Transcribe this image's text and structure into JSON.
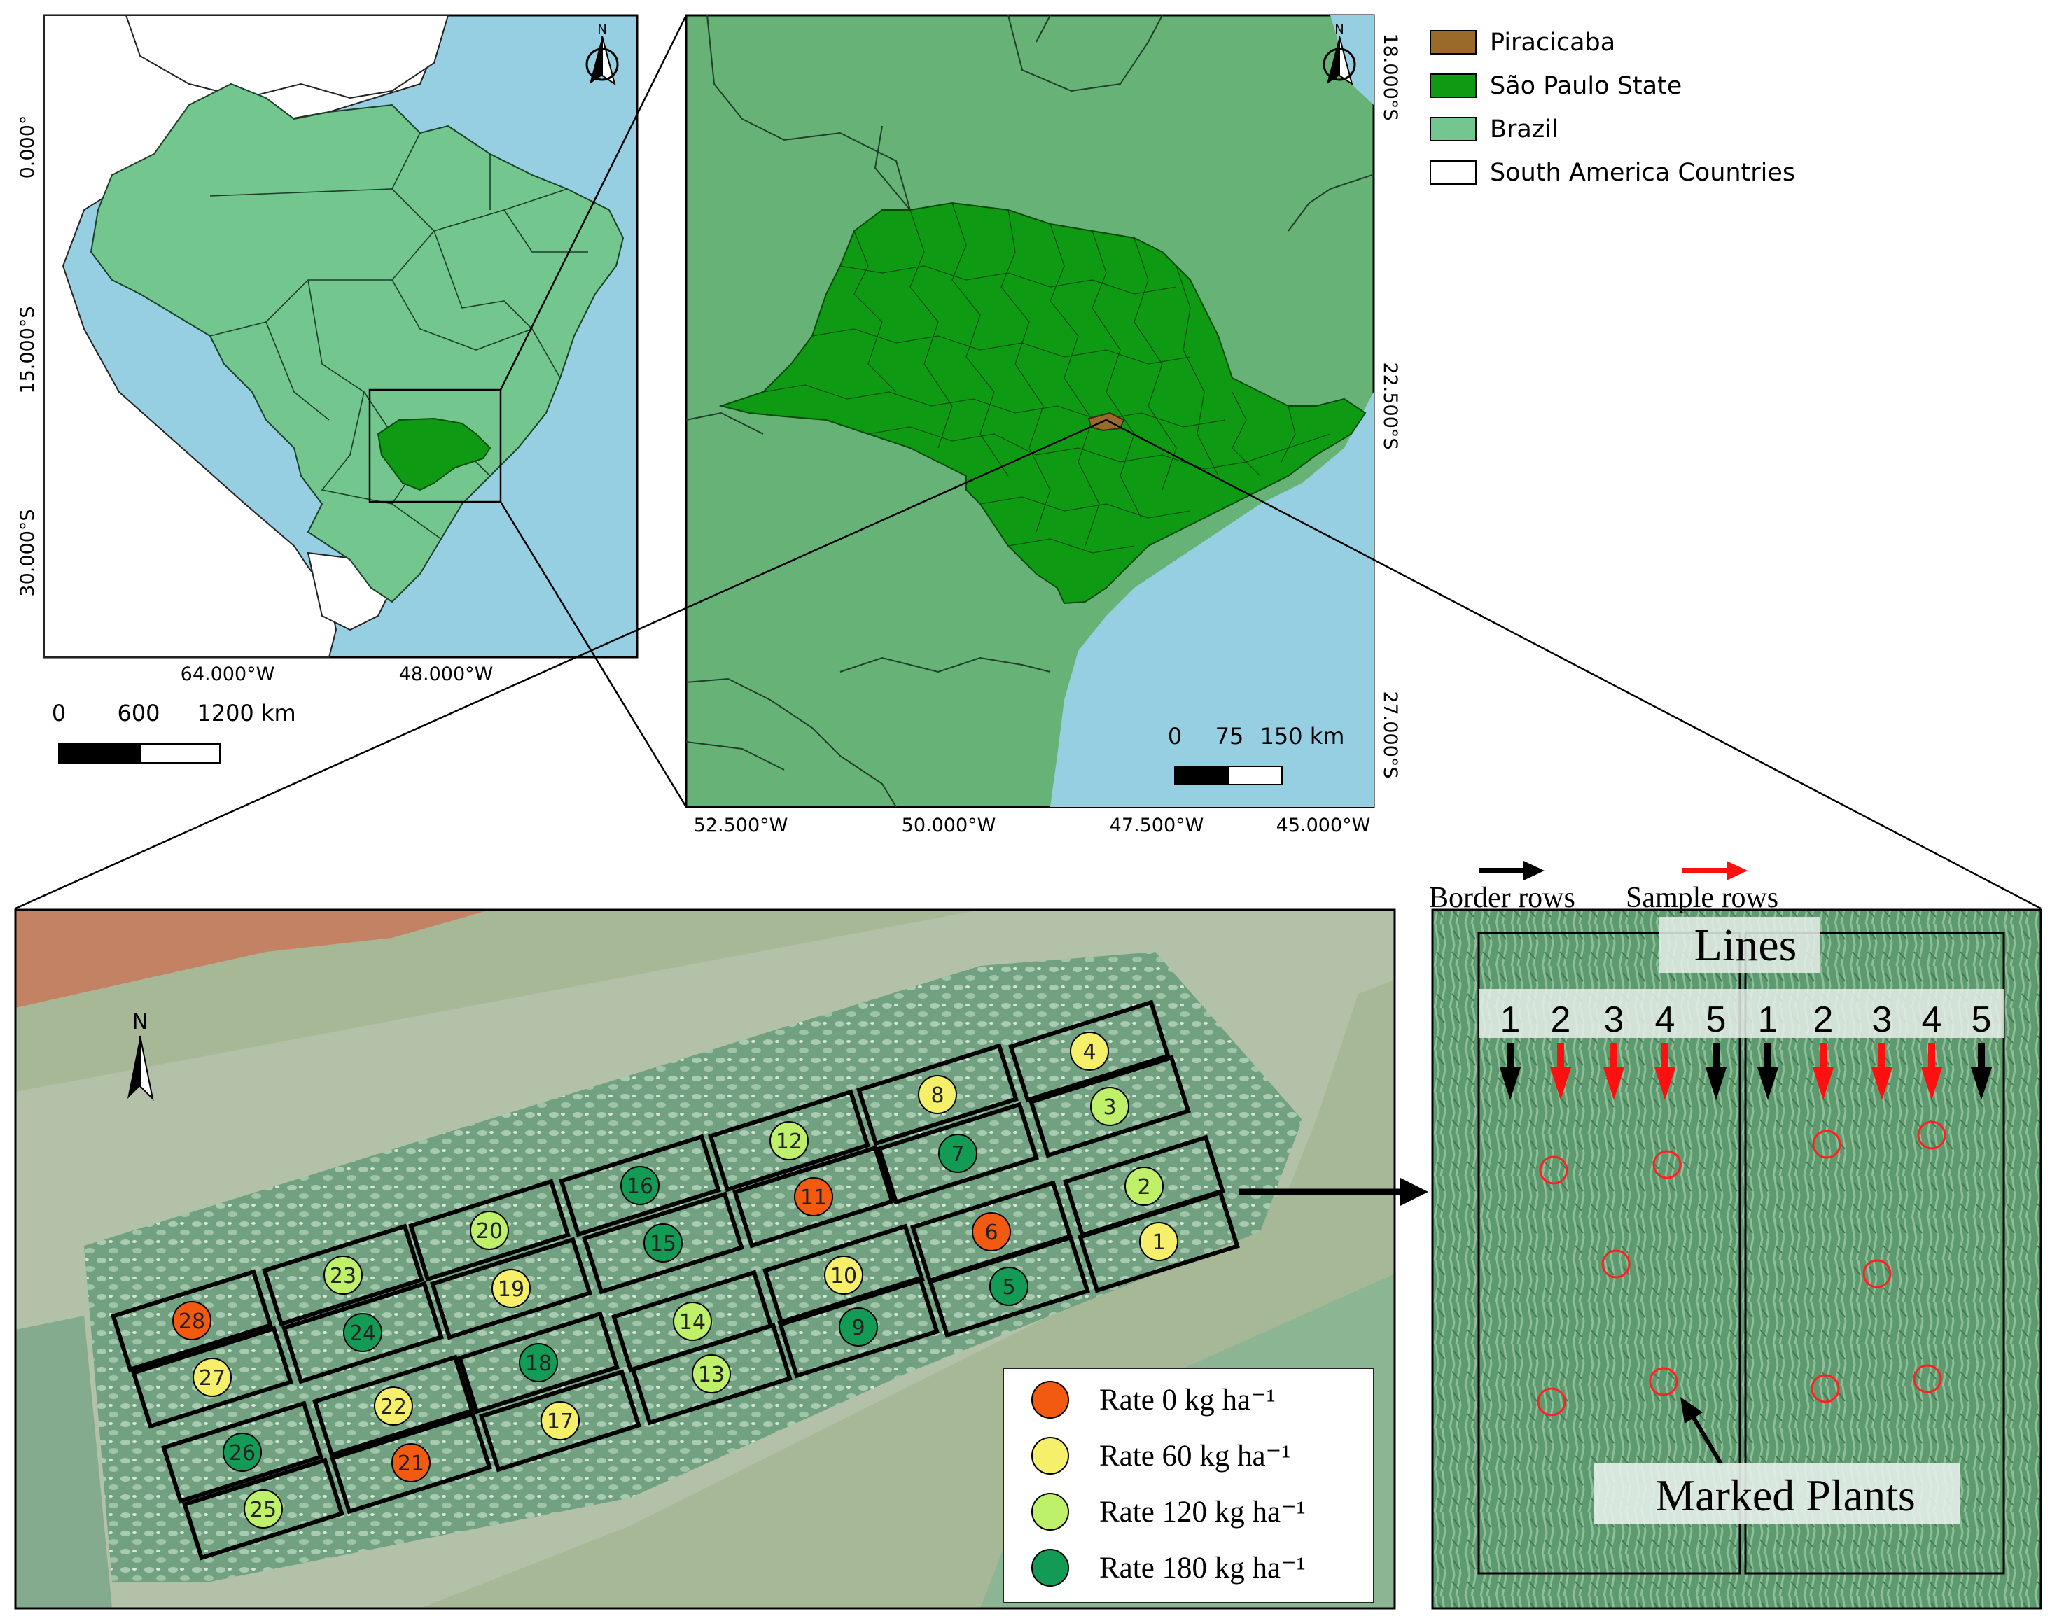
{
  "colors": {
    "ocean": "#96cfe2",
    "brazil": "#74c68f",
    "sp_state": "#0e9a12",
    "piracicaba": "#9a6a2a",
    "outside_sp": "#67b377",
    "sa_countries": "#ffffff",
    "rate0": "#f25a12",
    "rate60": "#f6ef6a",
    "rate120": "#bff069",
    "rate180": "#139a55",
    "field_green": "#7fae8e",
    "soil": "#c9785d",
    "sample_arrow": "#ff1010",
    "border_arrow": "#000000"
  },
  "legend": {
    "items": [
      {
        "label": "Piracicaba",
        "color_key": "piracicaba"
      },
      {
        "label": "São Paulo State",
        "color_key": "sp_state"
      },
      {
        "label": "Brazil",
        "color_key": "brazil"
      },
      {
        "label": "South America Countries",
        "color_key": "sa_countries"
      }
    ]
  },
  "map1": {
    "north": "N",
    "lat_labels": [
      "0.000°",
      "15.000°S",
      "30.000°S"
    ],
    "lon_labels": [
      "64.000°W",
      "48.000°W"
    ],
    "scale_labels": [
      "0",
      "600",
      "1200 km"
    ]
  },
  "map2": {
    "north": "N",
    "lat_labels": [
      "18.000°S",
      "22.500°S",
      "27.000°S"
    ],
    "lon_labels": [
      "52.500°W",
      "50.000°W",
      "47.500°W",
      "45.000°W"
    ],
    "scale_labels": [
      "0",
      "75",
      "150 km"
    ]
  },
  "field": {
    "north": "N",
    "plots": [
      {
        "id": "1",
        "rate": "rate60"
      },
      {
        "id": "2",
        "rate": "rate120"
      },
      {
        "id": "3",
        "rate": "rate120"
      },
      {
        "id": "4",
        "rate": "rate60"
      },
      {
        "id": "5",
        "rate": "rate180"
      },
      {
        "id": "6",
        "rate": "rate0"
      },
      {
        "id": "7",
        "rate": "rate180"
      },
      {
        "id": "8",
        "rate": "rate60"
      },
      {
        "id": "9",
        "rate": "rate180"
      },
      {
        "id": "10",
        "rate": "rate60"
      },
      {
        "id": "11",
        "rate": "rate0"
      },
      {
        "id": "12",
        "rate": "rate120"
      },
      {
        "id": "13",
        "rate": "rate120"
      },
      {
        "id": "14",
        "rate": "rate120"
      },
      {
        "id": "15",
        "rate": "rate180"
      },
      {
        "id": "16",
        "rate": "rate180"
      },
      {
        "id": "17",
        "rate": "rate60"
      },
      {
        "id": "18",
        "rate": "rate180"
      },
      {
        "id": "19",
        "rate": "rate60"
      },
      {
        "id": "20",
        "rate": "rate120"
      },
      {
        "id": "21",
        "rate": "rate0"
      },
      {
        "id": "22",
        "rate": "rate60"
      },
      {
        "id": "23",
        "rate": "rate120"
      },
      {
        "id": "24",
        "rate": "rate180"
      },
      {
        "id": "25",
        "rate": "rate120"
      },
      {
        "id": "26",
        "rate": "rate180"
      },
      {
        "id": "27",
        "rate": "rate60"
      },
      {
        "id": "28",
        "rate": "rate0"
      }
    ],
    "rate_legend": [
      {
        "text": "Rate 0 kg ha⁻¹",
        "color_key": "rate0"
      },
      {
        "text": "Rate 60 kg ha⁻¹",
        "color_key": "rate60"
      },
      {
        "text": "Rate 120 kg ha⁻¹",
        "color_key": "rate120"
      },
      {
        "text": "Rate 180 kg ha⁻¹",
        "color_key": "rate180"
      }
    ]
  },
  "detail": {
    "border_rows": "Border rows",
    "sample_rows": "Sample rows",
    "lines_title": "Lines",
    "line_numbers": [
      "1",
      "2",
      "3",
      "4",
      "5",
      "1",
      "2",
      "3",
      "4",
      "5"
    ],
    "line_types": [
      "border",
      "sample",
      "sample",
      "sample",
      "border",
      "border",
      "sample",
      "sample",
      "sample",
      "border"
    ],
    "marked_plants": "Marked Plants"
  }
}
